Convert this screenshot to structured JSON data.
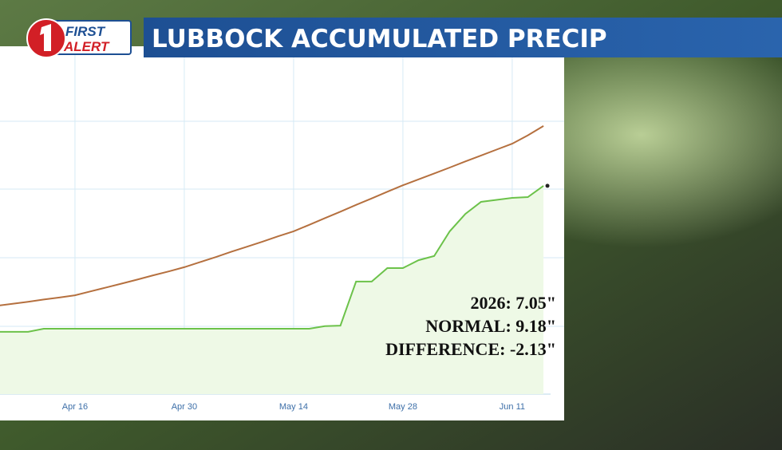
{
  "chart_data": {
    "type": "line",
    "title": "LUBBOCK ACCUMULATED PRECIP",
    "logo": {
      "top": "FIRST",
      "bottom": "ALERT"
    },
    "categories": [
      null,
      null,
      null,
      null,
      null,
      "Apr 16",
      null,
      null,
      null,
      null,
      null,
      null,
      "Apr 30",
      null,
      null,
      null,
      null,
      null,
      null,
      "May 14",
      null,
      null,
      null,
      null,
      null,
      null,
      "May 28",
      null,
      null,
      null,
      null,
      null,
      null,
      "Jun 11",
      null,
      null
    ],
    "series": [
      {
        "color": "#b5703f",
        "values": [
          2.78,
          2.85,
          2.92,
          3.0,
          3.07,
          3.15,
          3.29,
          3.43,
          3.57,
          3.71,
          3.86,
          4.0,
          4.15,
          4.33,
          4.51,
          4.7,
          4.88,
          5.06,
          5.25,
          5.43,
          5.66,
          5.9,
          6.13,
          6.37,
          6.6,
          6.84,
          7.07,
          7.28,
          7.49,
          7.7,
          7.92,
          8.13,
          8.34,
          8.55,
          8.85,
          9.18
        ]
      },
      {
        "color": "#6cc24a",
        "fill": "#eef9e6",
        "values": [
          1.85,
          1.85,
          1.85,
          1.96,
          1.96,
          1.96,
          1.96,
          1.96,
          1.96,
          1.96,
          1.96,
          1.96,
          1.96,
          1.96,
          1.96,
          1.96,
          1.96,
          1.96,
          1.96,
          1.96,
          1.96,
          2.05,
          2.07,
          3.64,
          3.64,
          4.12,
          4.12,
          4.4,
          4.55,
          5.43,
          6.05,
          6.48,
          6.55,
          6.62,
          6.65,
          7.05
        ]
      }
    ],
    "ylim": [
      -0.37,
      12.02
    ],
    "annotations": [
      "2026: 7.05\"",
      "NORMAL: 9.18\"",
      "DIFFERENCE: -2.13\""
    ]
  }
}
